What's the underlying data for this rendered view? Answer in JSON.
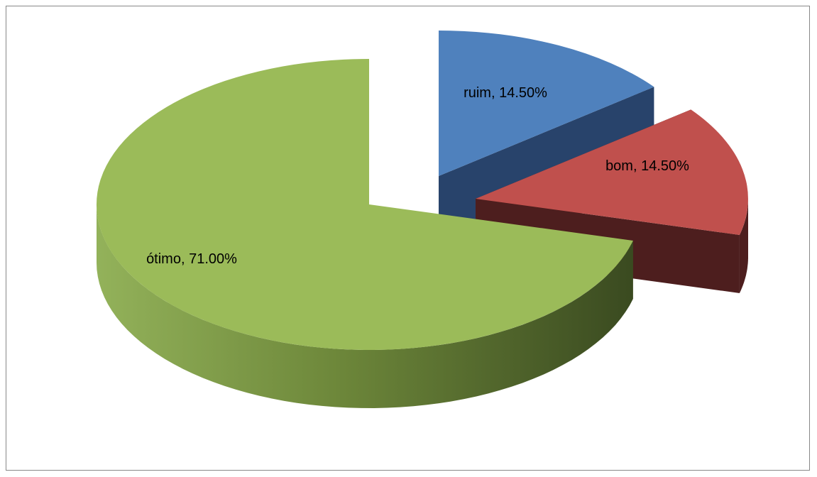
{
  "chart_data": {
    "type": "pie",
    "style": "3d-exploded",
    "title": "",
    "categories": [
      "ruim",
      "bom",
      "ótimo"
    ],
    "values": [
      14.5,
      14.5,
      71.0
    ],
    "unit": "%",
    "data_labels": [
      "ruim, 14.50%",
      "bom, 14.50%",
      "ótimo, 71.00%"
    ],
    "colors": [
      "#4f81bd",
      "#c0504d",
      "#9bbb59"
    ],
    "legend": "none",
    "exploded": [
      "ruim",
      "bom"
    ]
  }
}
